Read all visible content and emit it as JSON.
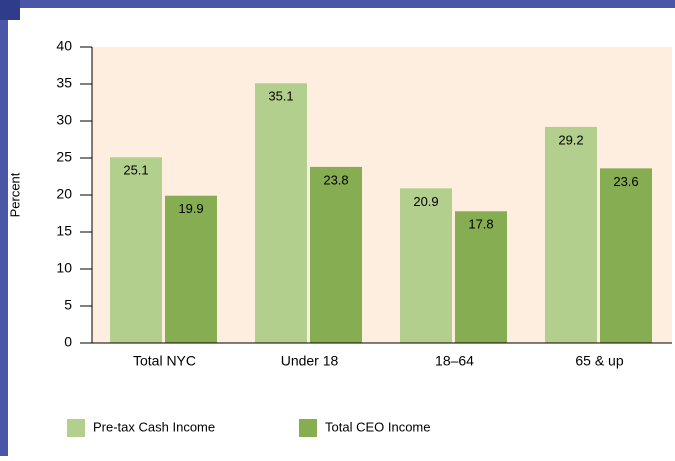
{
  "chart_data": {
    "type": "bar",
    "y_label": "Percent",
    "categories": [
      "Total NYC",
      "Under 18",
      "18–64",
      "65 & up"
    ],
    "series": [
      {
        "name": "Pre-tax Cash Income",
        "color": "#b3cf8d",
        "values": [
          25.1,
          35.1,
          20.9,
          29.2
        ]
      },
      {
        "name": "Total CEO Income",
        "color": "#86ad52",
        "values": [
          19.9,
          23.8,
          17.8,
          23.6
        ]
      }
    ],
    "ylim": [
      0,
      40
    ],
    "yticks": [
      0,
      5,
      10,
      15,
      20,
      25,
      30,
      35,
      40
    ],
    "grid": false,
    "legend": "bottom"
  }
}
